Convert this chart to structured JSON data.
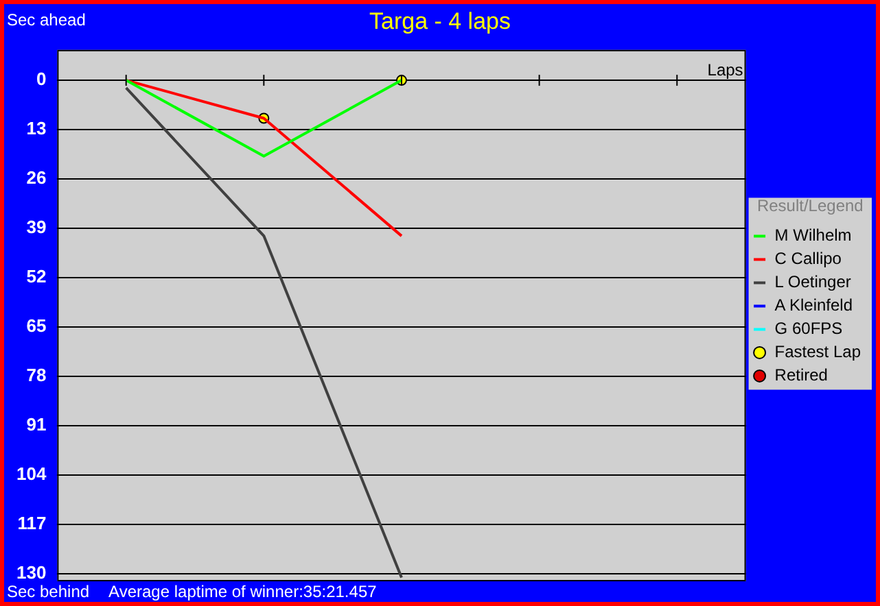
{
  "chart_data": {
    "type": "line",
    "title": "Targa - 4 laps",
    "xlabel": "Laps",
    "ylabel": "Sec ahead",
    "annotations": [
      "Sec behind",
      "Average laptime of winner:35:21.457"
    ],
    "legend_title": "Result/Legend",
    "categories": [
      null,
      null,
      null,
      null,
      null
    ],
    "ylim": [
      132,
      -8
    ],
    "yticks": [
      0,
      13,
      26,
      39,
      52,
      65,
      78,
      91,
      104,
      117,
      130
    ],
    "grid": "y",
    "legend": "right",
    "tick_labels": "y",
    "marker": "none",
    "series": [
      {
        "name": "M Wilhelm",
        "color": "#00ff00",
        "values": [
          0,
          20,
          0,
          null,
          null
        ]
      },
      {
        "name": "C Callipo",
        "color": "#ff0000",
        "values": [
          0,
          10,
          41,
          null,
          null
        ]
      },
      {
        "name": "L Oetinger",
        "color": "#404040",
        "values": [
          2,
          41,
          131,
          null,
          null
        ]
      },
      {
        "name": "A Kleinfeld",
        "color": "#0000ff",
        "values": [
          null,
          null,
          null,
          null,
          null
        ]
      },
      {
        "name": "G 60FPS",
        "color": "#00ffff",
        "values": [
          null,
          null,
          null,
          null,
          null
        ]
      },
      {
        "name": "Fastest Lap",
        "type": "scatter",
        "marker": "circle",
        "color": "#ffff00",
        "values": [
          null,
          10,
          0,
          null,
          null
        ]
      },
      {
        "name": "Retired",
        "type": "scatter",
        "marker": "circle",
        "color": "#e00000",
        "values": [
          null,
          null,
          null,
          null,
          null
        ]
      }
    ]
  }
}
